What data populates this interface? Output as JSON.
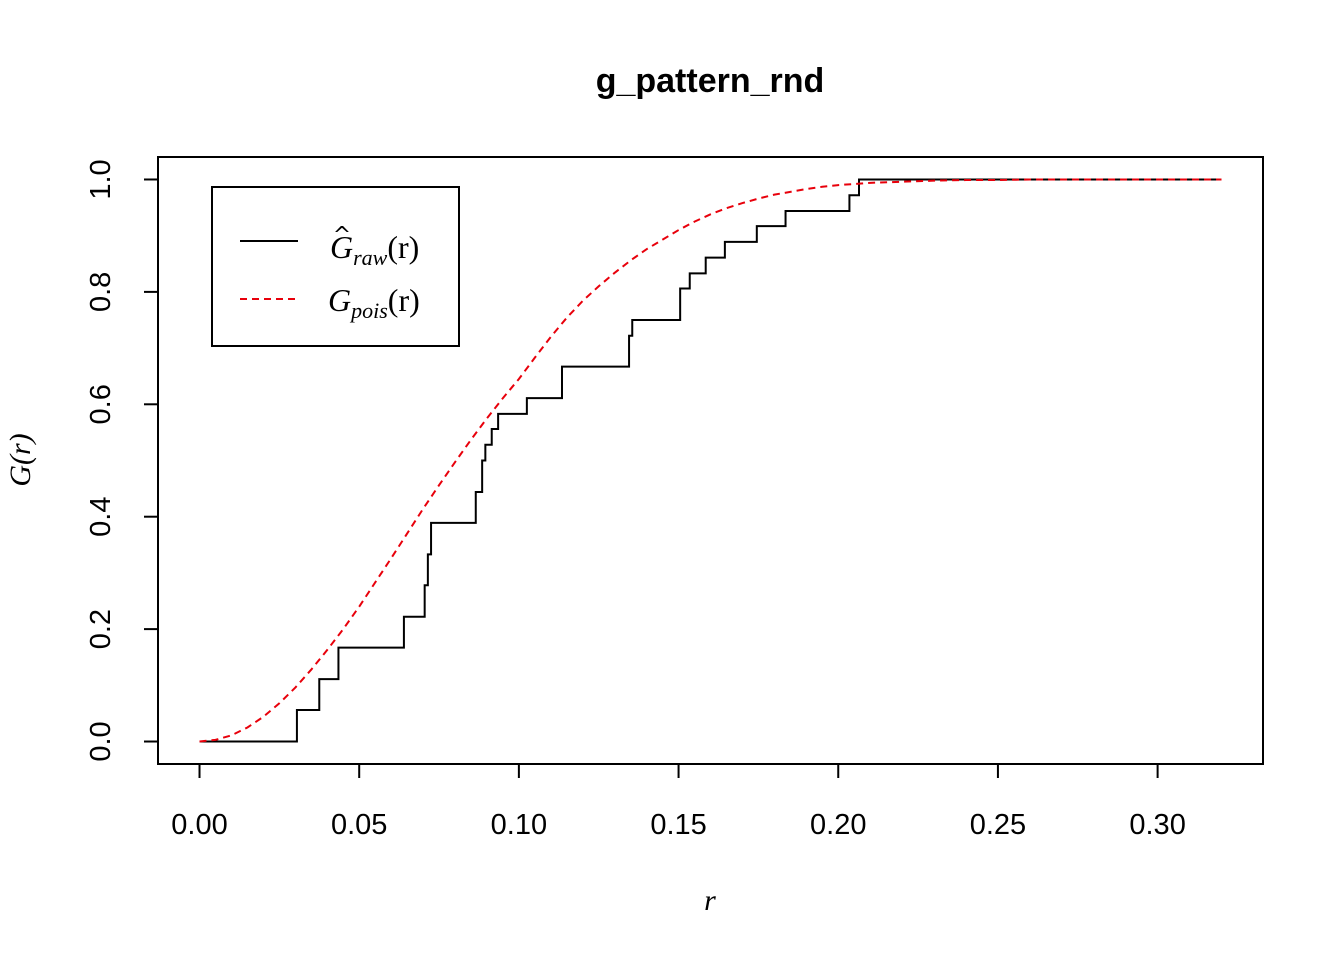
{
  "chart_data": {
    "type": "line",
    "title": "g_pattern_rnd",
    "xlabel": "r",
    "ylabel": "G(r)",
    "xlim": [
      -0.013,
      0.333
    ],
    "ylim": [
      -0.04,
      1.04
    ],
    "x_ticks": [
      "0.00",
      "0.05",
      "0.10",
      "0.15",
      "0.20",
      "0.25",
      "0.30"
    ],
    "y_ticks": [
      "0.0",
      "0.2",
      "0.4",
      "0.6",
      "0.8",
      "1.0"
    ],
    "grid": false,
    "legend_position": "top-left",
    "legend": [
      {
        "symbol": "G",
        "hat": "^",
        "subscript": "raw",
        "arg": "(r)",
        "color": "#000000",
        "dash": "solid"
      },
      {
        "symbol": "G",
        "hat": "",
        "subscript": "pois",
        "arg": "(r)",
        "color": "#e8000b",
        "dash": "dashed"
      }
    ],
    "series": [
      {
        "color": "#000000",
        "style": "step",
        "x": [
          0,
          0.0305,
          0.0335,
          0.0375,
          0.0385,
          0.0435,
          0.0445,
          0.064,
          0.0645,
          0.0695,
          0.0705,
          0.0715,
          0.0725,
          0.0865,
          0.0875,
          0.0885,
          0.0895,
          0.0905,
          0.0915,
          0.0935,
          0.0945,
          0.0955,
          0.1025,
          0.1035,
          0.1135,
          0.1145,
          0.1345,
          0.1355,
          0.1365,
          0.1505,
          0.1515,
          0.1535,
          0.1545,
          0.1585,
          0.1605,
          0.1645,
          0.1655,
          0.1665,
          0.1685,
          0.1745,
          0.1755,
          0.1775,
          0.1835,
          0.1845,
          0.1855,
          0.2035,
          0.2045,
          0.2055,
          0.2065,
          0.2075,
          0.32
        ],
        "y": [
          0,
          0.056,
          0.056,
          0.111,
          0.111,
          0.167,
          0.167,
          0.222,
          0.222,
          0.222,
          0.278,
          0.333,
          0.389,
          0.444,
          0.444,
          0.5,
          0.528,
          0.528,
          0.556,
          0.583,
          0.583,
          0.583,
          0.611,
          0.611,
          0.667,
          0.667,
          0.722,
          0.75,
          0.75,
          0.806,
          0.806,
          0.833,
          0.833,
          0.861,
          0.861,
          0.889,
          0.889,
          0.889,
          0.889,
          0.917,
          0.917,
          0.917,
          0.944,
          0.944,
          0.944,
          0.972,
          0.972,
          0.972,
          1.0,
          1.0,
          1.0
        ]
      },
      {
        "color": "#e8000b",
        "style": "dashed",
        "x": [
          0,
          0.005,
          0.01,
          0.015,
          0.02,
          0.025,
          0.03,
          0.035,
          0.04,
          0.045,
          0.05,
          0.055,
          0.06,
          0.065,
          0.07,
          0.075,
          0.08,
          0.085,
          0.09,
          0.095,
          0.1,
          0.105,
          0.11,
          0.115,
          0.12,
          0.125,
          0.13,
          0.135,
          0.14,
          0.145,
          0.15,
          0.155,
          0.16,
          0.165,
          0.17,
          0.175,
          0.18,
          0.185,
          0.19,
          0.195,
          0.2,
          0.21,
          0.22,
          0.23,
          0.24,
          0.25,
          0.26,
          0.28,
          0.3,
          0.32
        ],
        "y": [
          0,
          0.003,
          0.011,
          0.025,
          0.044,
          0.068,
          0.096,
          0.128,
          0.163,
          0.2,
          0.24,
          0.283,
          0.326,
          0.37,
          0.414,
          0.456,
          0.497,
          0.537,
          0.575,
          0.611,
          0.645,
          0.683,
          0.72,
          0.754,
          0.784,
          0.81,
          0.834,
          0.856,
          0.876,
          0.893,
          0.91,
          0.925,
          0.938,
          0.949,
          0.958,
          0.966,
          0.973,
          0.978,
          0.983,
          0.987,
          0.99,
          0.994,
          0.996,
          0.998,
          0.999,
          0.999,
          1.0,
          1.0,
          1.0,
          1.0
        ]
      }
    ]
  }
}
